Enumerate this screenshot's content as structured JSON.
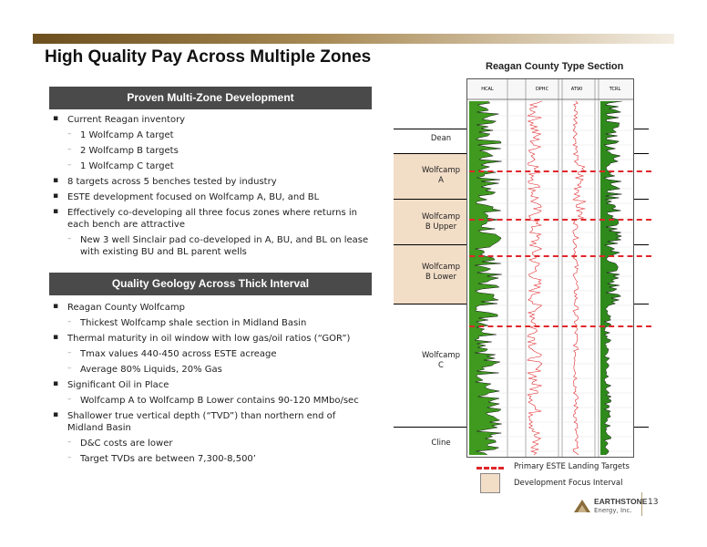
{
  "page": {
    "title": "High Quality Pay Across Multiple Zones",
    "page_number": "13"
  },
  "left": {
    "box1_header": "Proven Multi-Zone Development",
    "box1_items": [
      {
        "level": 1,
        "text": "Current Reagan inventory"
      },
      {
        "level": 2,
        "text": "1 Wolfcamp A target"
      },
      {
        "level": 2,
        "text": "2 Wolfcamp B targets"
      },
      {
        "level": 2,
        "text": "1 Wolfcamp C target"
      },
      {
        "level": 1,
        "text": "8 targets across 5 benches tested by industry"
      },
      {
        "level": 1,
        "text": "ESTE development focused on Wolfcamp A, BU, and BL"
      },
      {
        "level": 1,
        "text": "Effectively co-developing all three focus zones where returns in each bench are attractive"
      },
      {
        "level": 2,
        "text": "New 3 well Sinclair pad co-developed in A, BU, and BL on lease with existing BU and BL parent wells"
      }
    ],
    "box2_header": "Quality Geology Across Thick Interval",
    "box2_items": [
      {
        "level": 1,
        "text": "Reagan County Wolfcamp"
      },
      {
        "level": 2,
        "text": "Thickest Wolfcamp shale section in Midland Basin"
      },
      {
        "level": 1,
        "text": "Thermal maturity in oil window with low gas/oil ratios (“GOR”)"
      },
      {
        "level": 2,
        "text": "Tmax values 440-450 across ESTE acreage"
      },
      {
        "level": 2,
        "text": "Average 80% Liquids, 20% Gas"
      },
      {
        "level": 1,
        "text": "Significant Oil in Place"
      },
      {
        "level": 2,
        "text": "Wolfcamp A to Wolfcamp B Lower contains 90-120 MMbo/sec"
      },
      {
        "level": 1,
        "text": "Shallower true vertical depth (“TVD”) than northern end of Midland Basin"
      },
      {
        "level": 2,
        "text": "D&C costs are lower"
      },
      {
        "level": 2,
        "text": "Target TVDs are between 7,300-8,500’"
      }
    ]
  },
  "right": {
    "section_title": "Reagan County Type Section",
    "log_track_headers": [
      "HCAL",
      "DPHC",
      "AT90",
      "TCRL"
    ],
    "zones": [
      {
        "line1": "Dean",
        "line2": ""
      },
      {
        "line1": "Wolfcamp",
        "line2": "A"
      },
      {
        "line1": "Wolfcamp",
        "line2": "B Upper"
      },
      {
        "line1": "Wolfcamp",
        "line2": "B Lower"
      },
      {
        "line1": "Wolfcamp",
        "line2": "C"
      },
      {
        "line1": "Cline",
        "line2": ""
      }
    ],
    "legend": {
      "targets": "Primary ESTE  Landing Targets",
      "focus": "Development Focus Interval"
    },
    "colors": {
      "target_line": "#e0262b",
      "focus_shade": "#f2ddc7",
      "gr_fill": "#3f9a1f",
      "resistivity": "#e0262b"
    }
  },
  "footer": {
    "logo_name": "EARTHSTONE",
    "logo_sub": "Energy, Inc."
  }
}
